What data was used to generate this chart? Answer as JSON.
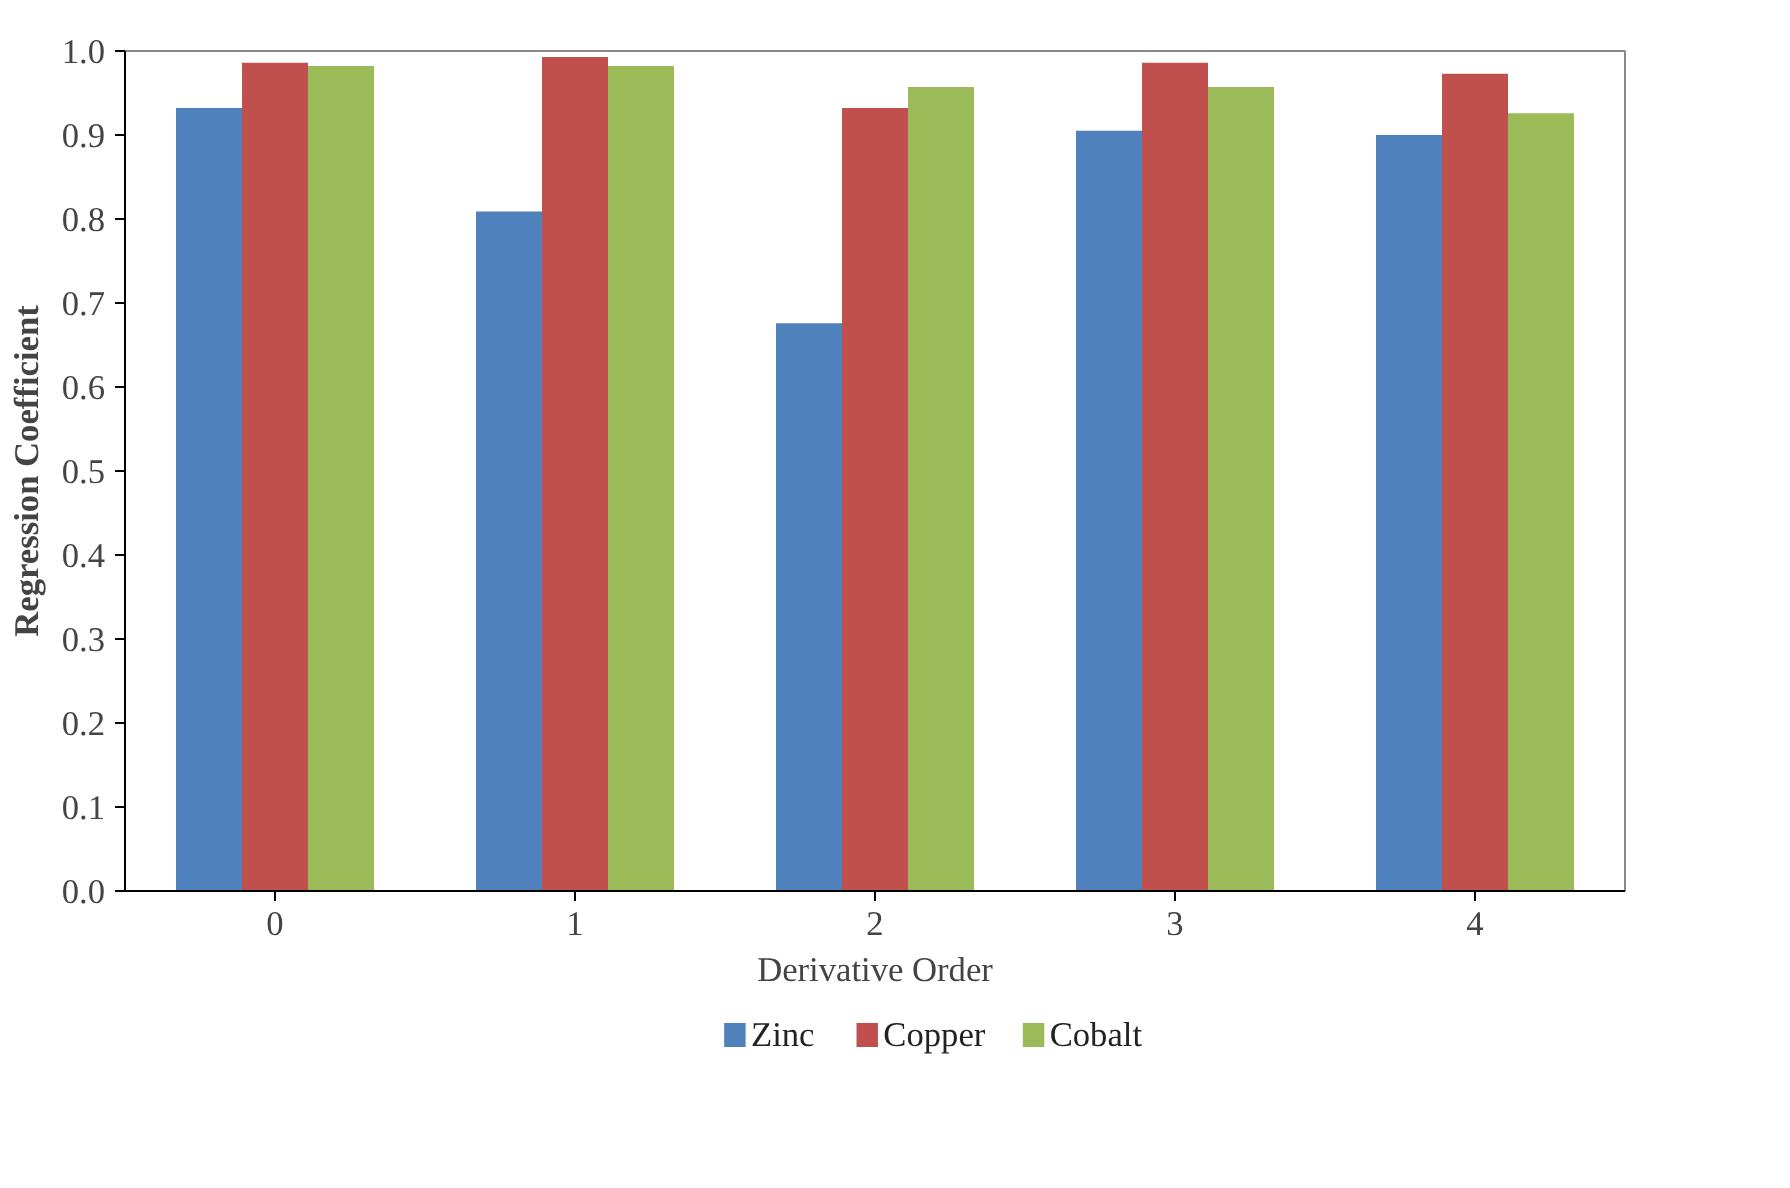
{
  "chart_data": {
    "type": "bar",
    "xlabel": "Derivative Order",
    "ylabel": "Regression Coefficient",
    "categories": [
      "0",
      "1",
      "2",
      "3",
      "4"
    ],
    "series": [
      {
        "name": "Zinc",
        "color": "#4f81bd",
        "values": [
          0.932,
          0.809,
          0.676,
          0.905,
          0.9
        ]
      },
      {
        "name": "Copper",
        "color": "#c0504d",
        "values": [
          0.986,
          0.993,
          0.932,
          0.986,
          0.973
        ]
      },
      {
        "name": "Cobalt",
        "color": "#9bbb59",
        "values": [
          0.982,
          0.982,
          0.957,
          0.957,
          0.926
        ]
      }
    ],
    "ylim": [
      0,
      1
    ],
    "yticks": [
      {
        "value": 0,
        "label": "0.0"
      },
      0.1,
      0.2,
      0.3,
      0.4,
      0.5,
      0.6,
      0.7,
      0.8,
      0.9,
      {
        "value": 1,
        "label": "1.0"
      }
    ],
    "grid": false,
    "legend": "bottom"
  }
}
